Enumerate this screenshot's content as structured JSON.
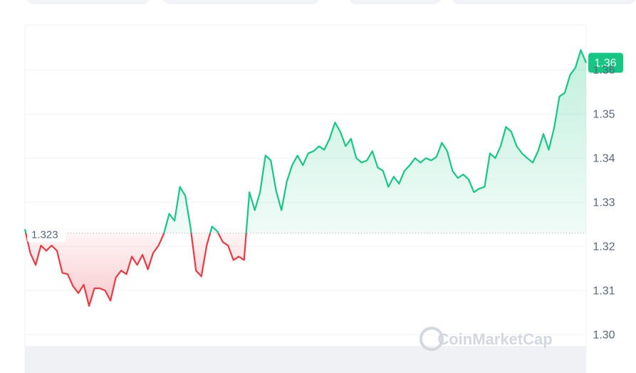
{
  "chart_data": {
    "type": "line",
    "values": [
      1.3239,
      1.3185,
      1.3158,
      1.3202,
      1.319,
      1.3202,
      1.319,
      1.314,
      1.3137,
      1.311,
      1.3094,
      1.3113,
      1.3065,
      1.3105,
      1.3105,
      1.31,
      1.3077,
      1.3129,
      1.3145,
      1.3137,
      1.3177,
      1.3158,
      1.3181,
      1.3148,
      1.3185,
      1.3202,
      1.3229,
      1.3274,
      1.3258,
      1.3335,
      1.3315,
      1.3242,
      1.3145,
      1.3132,
      1.3202,
      1.3245,
      1.3234,
      1.321,
      1.3202,
      1.3169,
      1.3177,
      1.3169,
      1.3323,
      1.3282,
      1.3323,
      1.3406,
      1.3395,
      1.3326,
      1.3282,
      1.3347,
      1.3384,
      1.3406,
      1.3384,
      1.3411,
      1.3416,
      1.3427,
      1.3419,
      1.3444,
      1.3481,
      1.346,
      1.3427,
      1.3444,
      1.34,
      1.339,
      1.3395,
      1.3416,
      1.3379,
      1.3371,
      1.3335,
      1.3358,
      1.3342,
      1.3371,
      1.3384,
      1.34,
      1.339,
      1.34,
      1.3395,
      1.3403,
      1.3435,
      1.3416,
      1.3371,
      1.3355,
      1.3363,
      1.3352,
      1.3323,
      1.3331,
      1.3335,
      1.3411,
      1.34,
      1.3427,
      1.3471,
      1.346,
      1.3427,
      1.3411,
      1.34,
      1.339,
      1.3416,
      1.3455,
      1.3419,
      1.3468,
      1.354,
      1.3548,
      1.3589,
      1.3605,
      1.3645,
      1.3616
    ],
    "up_color": "#16c784",
    "down_color": "#ea3943",
    "baseline": {
      "value": 1.323,
      "label": "1.323"
    },
    "current_label": "1.36",
    "ylim": [
      1.2913,
      1.3702
    ],
    "yticks": [
      {
        "value": 1.3,
        "label": "1.30"
      },
      1.31,
      1.32,
      1.33,
      1.34,
      1.35,
      1.36
    ],
    "grid": true,
    "watermark": "CoinMarketCap"
  }
}
